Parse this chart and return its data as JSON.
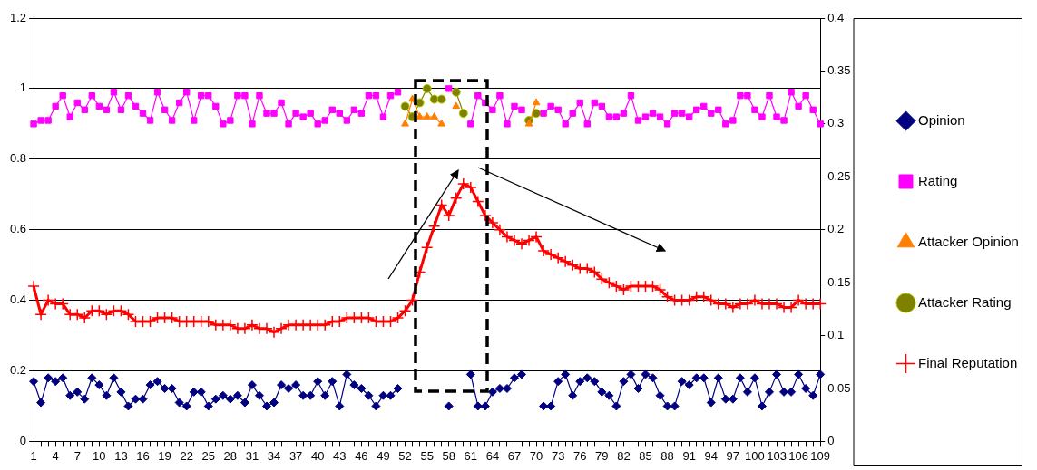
{
  "chart_data": {
    "type": "line",
    "categories": [
      "1",
      null,
      null,
      "4",
      null,
      null,
      "7",
      null,
      null,
      "10",
      null,
      null,
      "13",
      null,
      null,
      "16",
      null,
      null,
      "19",
      null,
      null,
      "22",
      null,
      null,
      "25",
      null,
      null,
      "28",
      null,
      null,
      "31",
      null,
      null,
      "34",
      null,
      null,
      "37",
      null,
      null,
      "40",
      null,
      null,
      "43",
      null,
      null,
      "46",
      null,
      null,
      "49",
      null,
      null,
      "52",
      null,
      null,
      "55",
      null,
      null,
      "58",
      null,
      null,
      "61",
      null,
      null,
      "64",
      null,
      null,
      "67",
      null,
      null,
      "70",
      null,
      null,
      "73",
      null,
      null,
      "76",
      null,
      null,
      "79",
      null,
      null,
      "82",
      null,
      null,
      "85",
      null,
      null,
      "88",
      null,
      null,
      "91",
      null,
      null,
      "94",
      null,
      null,
      "97",
      null,
      null,
      "100",
      null,
      null,
      "103",
      null,
      null,
      "106",
      null,
      null,
      "109"
    ],
    "series": [
      {
        "name": "Opinion",
        "color": "#000080",
        "marker": "diamond",
        "values": [
          0.17,
          0.11,
          0.18,
          0.17,
          0.18,
          0.13,
          0.14,
          0.12,
          0.18,
          0.16,
          0.13,
          0.18,
          0.14,
          0.1,
          0.12,
          0.12,
          0.16,
          0.17,
          0.15,
          0.15,
          0.11,
          0.1,
          0.14,
          0.14,
          0.1,
          0.12,
          0.13,
          0.12,
          0.13,
          0.11,
          0.16,
          0.13,
          0.1,
          0.11,
          0.16,
          0.15,
          0.16,
          0.13,
          0.13,
          0.17,
          0.13,
          0.17,
          0.1,
          0.19,
          0.16,
          0.15,
          0.13,
          0.1,
          0.13,
          0.13,
          0.15,
          null,
          null,
          null,
          null,
          null,
          null,
          0.1,
          null,
          null,
          0.19,
          0.1,
          0.1,
          0.14,
          0.15,
          0.15,
          0.18,
          0.19,
          null,
          null,
          0.1,
          0.1,
          0.17,
          0.19,
          0.13,
          0.17,
          0.18,
          0.17,
          0.14,
          0.13,
          0.1,
          0.17,
          0.19,
          0.15,
          0.19,
          0.18,
          0.13,
          0.1,
          0.1,
          0.17,
          0.16,
          0.18,
          0.18,
          0.11,
          0.18,
          0.12,
          0.12,
          0.18,
          0.14,
          0.18,
          0.1,
          0.14,
          0.19,
          0.14,
          0.14,
          0.19,
          0.15,
          0.13,
          0.19
        ]
      },
      {
        "name": "Rating",
        "color": "#ff00ff",
        "marker": "square",
        "values": [
          0.9,
          0.91,
          0.91,
          0.95,
          0.98,
          0.92,
          0.96,
          0.94,
          0.98,
          0.95,
          0.94,
          0.99,
          0.94,
          0.98,
          0.95,
          0.93,
          0.91,
          0.99,
          0.94,
          0.91,
          0.96,
          0.99,
          0.91,
          0.98,
          0.98,
          0.95,
          0.9,
          0.91,
          0.98,
          0.98,
          0.9,
          0.98,
          0.93,
          0.93,
          0.96,
          0.9,
          0.93,
          0.92,
          0.93,
          0.9,
          0.91,
          0.94,
          0.93,
          0.91,
          0.94,
          0.93,
          0.98,
          0.98,
          0.92,
          0.98,
          0.99,
          null,
          null,
          null,
          null,
          null,
          null,
          1.0,
          null,
          null,
          0.9,
          0.98,
          0.96,
          0.94,
          0.98,
          0.9,
          0.95,
          0.94,
          null,
          null,
          0.93,
          0.95,
          0.94,
          0.9,
          0.93,
          0.96,
          0.9,
          0.96,
          0.95,
          0.92,
          0.92,
          0.93,
          0.98,
          0.91,
          0.92,
          0.93,
          0.92,
          0.9,
          0.93,
          0.93,
          0.92,
          0.94,
          0.95,
          0.93,
          0.94,
          0.9,
          0.91,
          0.98,
          0.98,
          0.94,
          0.92,
          0.98,
          0.92,
          0.91,
          0.99,
          0.95,
          0.98,
          0.94,
          0.9
        ]
      },
      {
        "name": "Attacker Opinion",
        "color": "#ff8000",
        "marker": "triangle",
        "values": [
          null,
          null,
          null,
          null,
          null,
          null,
          null,
          null,
          null,
          null,
          null,
          null,
          null,
          null,
          null,
          null,
          null,
          null,
          null,
          null,
          null,
          null,
          null,
          null,
          null,
          null,
          null,
          null,
          null,
          null,
          null,
          null,
          null,
          null,
          null,
          null,
          null,
          null,
          null,
          null,
          null,
          null,
          null,
          null,
          null,
          null,
          null,
          null,
          null,
          null,
          null,
          0.9,
          0.97,
          0.92,
          0.92,
          0.92,
          0.9,
          null,
          0.95,
          null,
          null,
          null,
          null,
          null,
          null,
          null,
          null,
          null,
          0.9,
          0.96,
          null,
          null,
          null,
          null,
          null,
          null,
          null,
          null,
          null,
          null,
          null,
          null,
          null,
          null,
          null,
          null,
          null,
          null,
          null,
          null,
          null,
          null,
          null,
          null,
          null,
          null,
          null,
          null,
          null,
          null,
          null,
          null,
          null,
          null,
          null,
          null,
          null,
          null,
          null
        ]
      },
      {
        "name": "Attacker Rating",
        "color": "#808000",
        "marker": "circle",
        "values": [
          null,
          null,
          null,
          null,
          null,
          null,
          null,
          null,
          null,
          null,
          null,
          null,
          null,
          null,
          null,
          null,
          null,
          null,
          null,
          null,
          null,
          null,
          null,
          null,
          null,
          null,
          null,
          null,
          null,
          null,
          null,
          null,
          null,
          null,
          null,
          null,
          null,
          null,
          null,
          null,
          null,
          null,
          null,
          null,
          null,
          null,
          null,
          null,
          null,
          null,
          null,
          0.95,
          0.92,
          0.96,
          1.0,
          0.97,
          0.97,
          null,
          0.99,
          0.93,
          null,
          null,
          null,
          null,
          null,
          null,
          null,
          null,
          0.91,
          0.93,
          null,
          null,
          null,
          null,
          null,
          null,
          null,
          null,
          null,
          null,
          null,
          null,
          null,
          null,
          null,
          null,
          null,
          null,
          null,
          null,
          null,
          null,
          null,
          null,
          null,
          null,
          null,
          null,
          null,
          null,
          null,
          null,
          null,
          null,
          null,
          null,
          null,
          null,
          null
        ]
      },
      {
        "name": "Final Reputation",
        "color": "#ff0000",
        "marker": "cross",
        "values": [
          0.44,
          0.36,
          0.4,
          0.39,
          0.39,
          0.36,
          0.36,
          0.35,
          0.37,
          0.37,
          0.36,
          0.37,
          0.37,
          0.36,
          0.34,
          0.34,
          0.34,
          0.35,
          0.35,
          0.35,
          0.34,
          0.34,
          0.34,
          0.34,
          0.34,
          0.33,
          0.33,
          0.33,
          0.32,
          0.32,
          0.33,
          0.32,
          0.32,
          0.31,
          0.32,
          0.33,
          0.33,
          0.33,
          0.33,
          0.33,
          0.33,
          0.34,
          0.34,
          0.35,
          0.35,
          0.35,
          0.35,
          0.34,
          0.34,
          0.34,
          0.35,
          0.37,
          0.4,
          0.48,
          0.55,
          0.61,
          0.67,
          0.64,
          0.69,
          0.73,
          0.72,
          0.68,
          0.64,
          0.62,
          0.6,
          0.58,
          0.57,
          0.56,
          0.57,
          0.58,
          0.54,
          0.53,
          0.52,
          0.51,
          0.5,
          0.49,
          0.49,
          0.48,
          0.46,
          0.45,
          0.44,
          0.43,
          0.44,
          0.44,
          0.44,
          0.44,
          0.43,
          0.41,
          0.4,
          0.4,
          0.4,
          0.41,
          0.41,
          0.4,
          0.39,
          0.39,
          0.38,
          0.39,
          0.39,
          0.4,
          0.39,
          0.39,
          0.39,
          0.38,
          0.38,
          0.4,
          0.39,
          0.39,
          0.39
        ]
      }
    ],
    "ylim": [
      0,
      1.2
    ],
    "yticks": [
      0,
      0.2,
      0.4,
      0.6,
      0.8,
      1,
      1.2
    ],
    "y2lim": [
      0,
      0.4
    ],
    "y2ticks": [
      0,
      0.05,
      0.1,
      0.15,
      0.2,
      0.25,
      0.3,
      0.35,
      0.4
    ],
    "grid": "y",
    "legend": "right"
  }
}
